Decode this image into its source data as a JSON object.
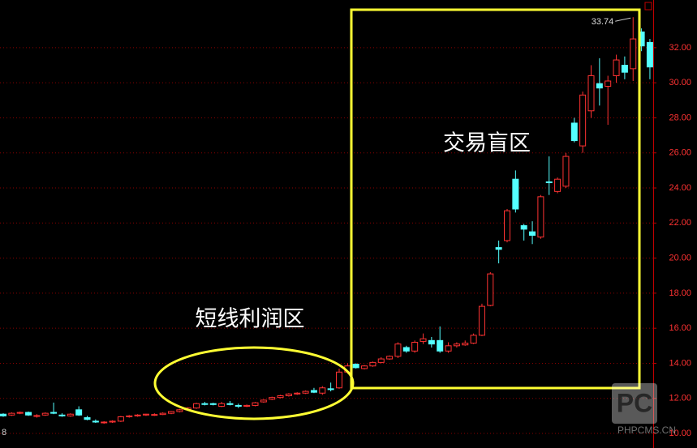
{
  "chart_data": {
    "type": "candlestick",
    "open": [
      11.1,
      11.05,
      11.15,
      11.2,
      10.98,
      11.05,
      11.2,
      11.05,
      11.0,
      11.35,
      10.9,
      10.7,
      10.62,
      10.65,
      10.7,
      10.95,
      11.0,
      11.05,
      11.05,
      11.08,
      11.15,
      11.25,
      11.35,
      11.45,
      11.7,
      11.7,
      11.55,
      11.7,
      11.6,
      11.55,
      11.6,
      11.8,
      11.95,
      12.05,
      12.15,
      12.25,
      12.3,
      12.45,
      12.3,
      12.55,
      12.6,
      13.5,
      13.95,
      13.7,
      13.85,
      14.05,
      14.25,
      14.4,
      14.9,
      14.7,
      15.25,
      15.3,
      15.3,
      14.7,
      15.0,
      15.05,
      15.15,
      15.6,
      17.3,
      20.6,
      21.0,
      24.5,
      21.85,
      21.5,
      21.2,
      24.35,
      23.8,
      24.1,
      27.7,
      26.4,
      28.4,
      29.95,
      29.8,
      30.4,
      31.0,
      30.8,
      32.9,
      32.3
    ],
    "high": [
      11.15,
      11.2,
      11.25,
      11.25,
      11.1,
      11.2,
      11.76,
      11.15,
      11.15,
      11.55,
      11.0,
      10.8,
      10.7,
      10.75,
      11.0,
      11.05,
      11.1,
      11.12,
      11.15,
      11.2,
      11.28,
      11.4,
      11.5,
      11.75,
      11.8,
      11.75,
      11.8,
      11.85,
      11.7,
      11.65,
      11.8,
      11.95,
      12.1,
      12.2,
      12.3,
      12.35,
      12.45,
      12.6,
      12.7,
      12.9,
      13.7,
      14.0,
      14.0,
      13.9,
      14.1,
      14.35,
      14.45,
      15.2,
      15.0,
      15.3,
      15.7,
      15.5,
      16.1,
      15.2,
      15.2,
      15.3,
      15.7,
      17.4,
      19.2,
      21.0,
      22.8,
      25.0,
      21.95,
      22.1,
      23.6,
      25.8,
      24.6,
      26.0,
      28.0,
      29.5,
      31.0,
      31.4,
      30.4,
      31.6,
      31.5,
      33.74,
      33.1,
      32.5
    ],
    "low": [
      10.95,
      11.0,
      11.1,
      11.0,
      10.9,
      11.0,
      11.1,
      10.95,
      10.95,
      11.0,
      10.75,
      10.6,
      10.55,
      10.6,
      10.65,
      10.9,
      10.95,
      11.0,
      11.0,
      11.05,
      11.1,
      11.2,
      11.3,
      11.4,
      11.6,
      11.6,
      11.5,
      11.6,
      11.45,
      11.5,
      11.55,
      11.75,
      11.9,
      12.0,
      12.1,
      12.2,
      12.25,
      12.3,
      12.2,
      12.4,
      12.55,
      13.4,
      13.7,
      13.65,
      13.8,
      14.0,
      14.2,
      14.3,
      14.6,
      14.6,
      15.1,
      14.9,
      14.6,
      14.6,
      14.9,
      15.0,
      15.1,
      15.55,
      17.25,
      19.7,
      20.9,
      22.6,
      21.0,
      20.8,
      21.1,
      23.6,
      23.7,
      24.0,
      26.6,
      26.0,
      28.0,
      28.7,
      27.6,
      30.0,
      30.2,
      30.1,
      31.8,
      30.2
    ],
    "close": [
      11.0,
      11.15,
      11.2,
      11.05,
      11.02,
      11.15,
      11.15,
      11.0,
      11.1,
      11.05,
      10.8,
      10.65,
      10.65,
      10.7,
      10.95,
      11.0,
      11.05,
      11.1,
      11.08,
      11.15,
      11.25,
      11.35,
      11.45,
      11.7,
      11.68,
      11.65,
      11.7,
      11.65,
      11.55,
      11.6,
      11.75,
      11.9,
      12.05,
      12.15,
      12.25,
      12.3,
      12.4,
      12.35,
      12.6,
      12.5,
      13.5,
      13.85,
      13.75,
      13.85,
      14.05,
      14.25,
      14.4,
      15.1,
      14.7,
      15.2,
      15.4,
      15.1,
      14.7,
      15.0,
      15.1,
      15.15,
      15.6,
      17.25,
      19.1,
      20.5,
      22.7,
      22.8,
      21.65,
      21.3,
      23.5,
      24.3,
      24.5,
      25.8,
      26.7,
      29.3,
      30.4,
      29.7,
      30.1,
      31.3,
      30.6,
      32.5,
      32.1,
      30.9
    ],
    "up_color": "#ff3232",
    "down_color": "#54ffff",
    "ylim": [
      9.17,
      34.72
    ],
    "yticks": [
      {
        "value": 10,
        "label": "10.00"
      },
      {
        "value": 12,
        "label": "12.00"
      },
      {
        "value": 14,
        "label": "14.00"
      },
      {
        "value": 16,
        "label": "16.00"
      },
      {
        "value": 18,
        "label": "18.00"
      },
      {
        "value": 20,
        "label": "20.00"
      },
      {
        "value": 22,
        "label": "22.00"
      },
      {
        "value": 24,
        "label": "24.00"
      },
      {
        "value": 26,
        "label": "26.00"
      },
      {
        "value": 28,
        "label": "28.00"
      },
      {
        "value": 30,
        "label": "30.00"
      },
      {
        "value": 32,
        "label": "32.00"
      }
    ],
    "grid": true,
    "annotations": [
      "短线利润区",
      "交易盲区"
    ],
    "corner_label": "8",
    "watermark": [
      "PC",
      "PHPCMS.CN"
    ]
  }
}
